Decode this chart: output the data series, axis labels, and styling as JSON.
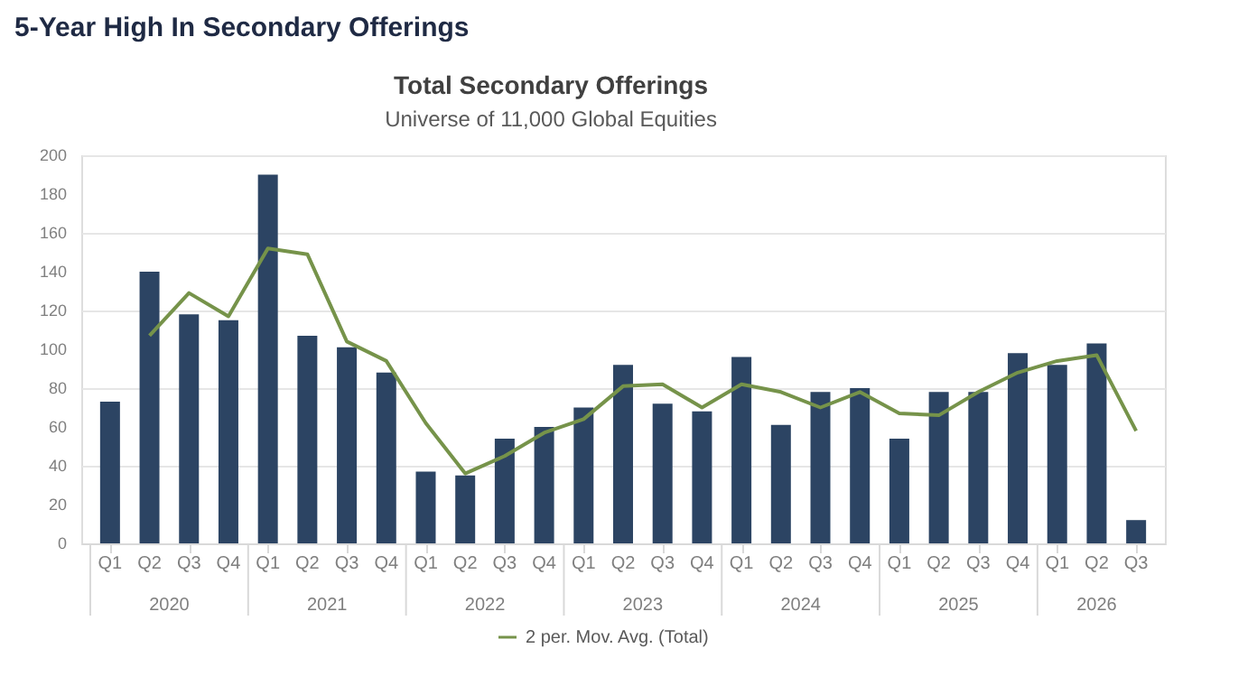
{
  "chart_data": {
    "type": "bar",
    "title": "Total Secondary Offerings",
    "subtitle": "Universe of 11,000 Global Equities",
    "annotations": [
      "5-Year High In Secondary Offerings",
      "2020",
      "2021",
      "2022",
      "2023",
      "2024",
      "2025",
      "2026"
    ],
    "categories": [
      "Q1",
      "Q2",
      "Q3",
      "Q4",
      "Q1",
      "Q2",
      "Q3",
      "Q4",
      "Q1",
      "Q2",
      "Q3",
      "Q4",
      "Q1",
      "Q2",
      "Q3",
      "Q4",
      "Q1",
      "Q2",
      "Q3",
      "Q4",
      "Q1",
      "Q2",
      "Q3",
      "Q4",
      "Q1",
      "Q2",
      "Q3"
    ],
    "series": [
      {
        "color": "#2c4463",
        "values": [
          73,
          140,
          118,
          115,
          190,
          107,
          101,
          88,
          37,
          35,
          54,
          60,
          70,
          92,
          72,
          68,
          96,
          61,
          78,
          80,
          54,
          78,
          78,
          98,
          92,
          103,
          12
        ]
      },
      {
        "type": "line",
        "name": "2 per. Mov. Avg. (Total)",
        "color": "#76934a",
        "values": [
          null,
          107,
          129,
          117,
          152,
          149,
          104,
          94,
          62,
          36,
          45,
          57,
          64,
          81,
          82,
          70,
          82,
          78,
          70,
          78,
          67,
          66,
          78,
          88,
          94,
          97,
          58
        ]
      }
    ],
    "ylim": [
      0,
      200
    ],
    "yticks": [
      0,
      20,
      40,
      60,
      80,
      100,
      120,
      140,
      160,
      180,
      200
    ],
    "grid": "y",
    "legend": "bottom",
    "marker": "none",
    "line_style": "solid"
  }
}
